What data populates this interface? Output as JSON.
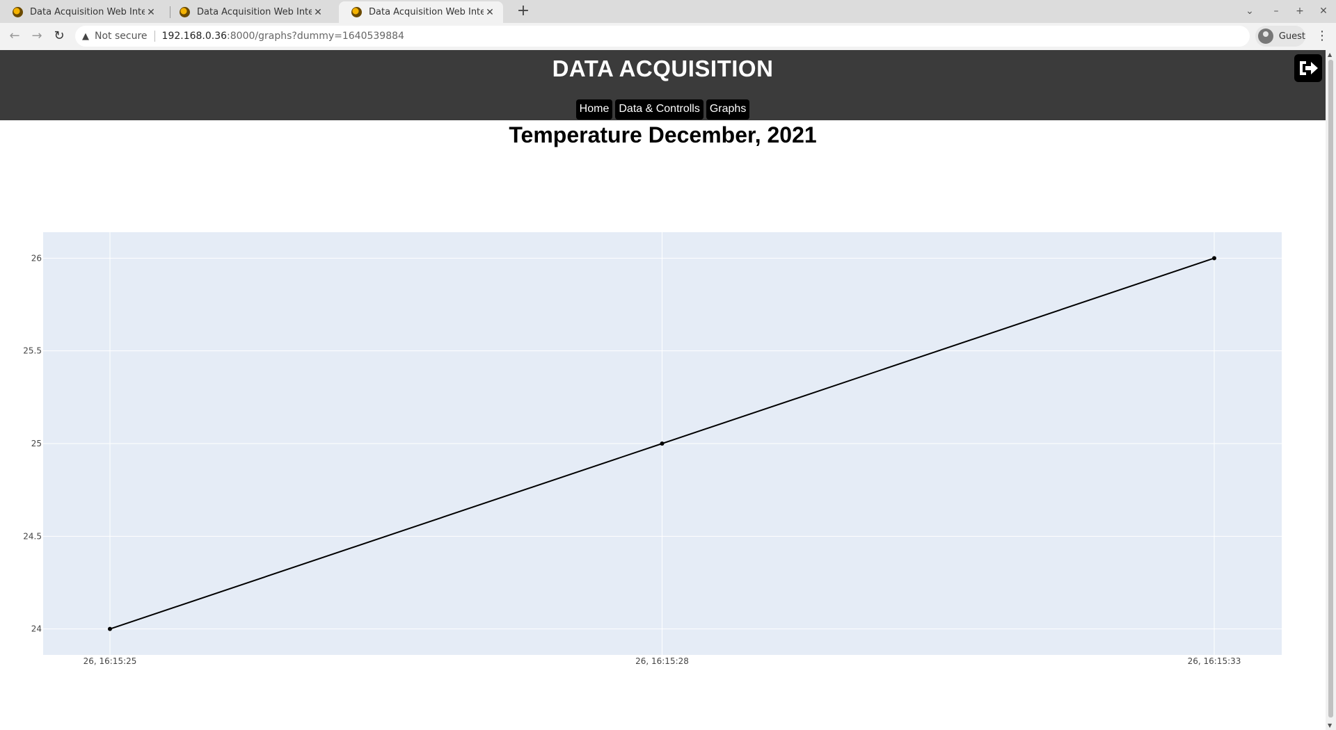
{
  "browser": {
    "tabs": [
      {
        "title": "Data Acquisition Web Interface",
        "active": false
      },
      {
        "title": "Data Acquisition Web Interface",
        "active": false
      },
      {
        "title": "Data Acquisition Web Interface",
        "active": true
      }
    ],
    "security_label": "Not secure",
    "url_host": "192.168.0.36",
    "url_rest": ":8000/graphs?dummy=1640539884",
    "profile_label": "Guest"
  },
  "header": {
    "title": "DATA ACQUISITION",
    "nav": [
      "Home",
      "Data & Controlls",
      "Graphs"
    ]
  },
  "graph": {
    "title": "Temperature December, 2021"
  },
  "chart_data": {
    "type": "line",
    "title": "Temperature December, 2021",
    "xlabel": "",
    "ylabel": "",
    "x": [
      "26, 16:15:25",
      "26, 16:15:28",
      "26, 16:15:33"
    ],
    "series": [
      {
        "values": [
          24,
          25,
          26
        ]
      }
    ],
    "yticks": [
      24,
      24.5,
      25,
      25.5,
      26
    ],
    "ylim": [
      23.86,
      26.14
    ],
    "grid": true,
    "legend": "none",
    "colors": {
      "plot_bg": "#e5ecf6",
      "line": "#000000",
      "grid": "#ffffff",
      "tick_text": "#444444"
    }
  }
}
